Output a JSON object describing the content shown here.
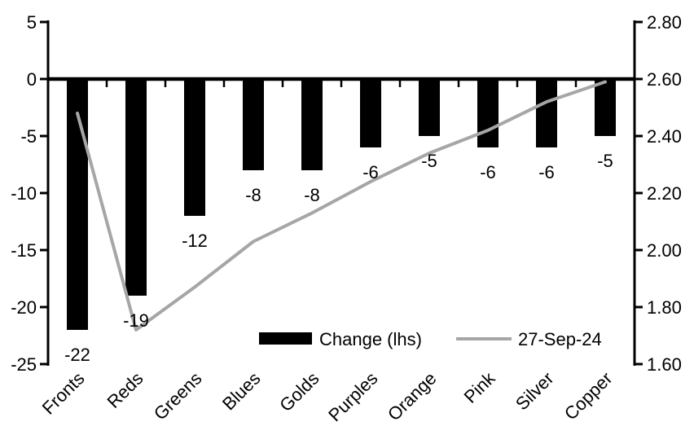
{
  "chart_data": {
    "type": "combo-bar-line",
    "title": "",
    "background": "#ffffff",
    "categories": [
      "Fronts",
      "Reds",
      "Greens",
      "Blues",
      "Golds",
      "Purples",
      "Orange",
      "Pink",
      "Silver",
      "Copper"
    ],
    "series": [
      {
        "name": "Change (lhs)",
        "type": "bar",
        "axis": "left",
        "color": "#000000",
        "values": [
          -22,
          -19,
          -12,
          -8,
          -8,
          -6,
          -5,
          -6,
          -6,
          -5
        ],
        "data_labels": [
          "-22",
          "-19",
          "-12",
          "-8",
          "-8",
          "-6",
          "-5",
          "-6",
          "-6",
          "-5"
        ]
      },
      {
        "name": "27-Sep-24",
        "type": "line",
        "axis": "right",
        "color": "#a6a6a6",
        "values": [
          2.48,
          1.72,
          1.87,
          2.03,
          2.13,
          2.24,
          2.34,
          2.42,
          2.52,
          2.59
        ]
      }
    ],
    "left_axis": {
      "min": -25,
      "max": 5,
      "tick_labels": [
        "5",
        "0",
        "-5",
        "-10",
        "-15",
        "-20",
        "-25"
      ]
    },
    "right_axis": {
      "min": 1.6,
      "max": 2.8,
      "tick_labels": [
        "2.80",
        "2.60",
        "2.40",
        "2.20",
        "2.00",
        "1.80",
        "1.60"
      ]
    },
    "legend": {
      "position": "inside-bottom",
      "entries": [
        {
          "label": "Change (lhs)",
          "swatch": "bar",
          "color": "#000000"
        },
        {
          "label": "27-Sep-24",
          "swatch": "line",
          "color": "#a6a6a6"
        }
      ]
    },
    "grid": false,
    "axis_color": "#000000"
  }
}
